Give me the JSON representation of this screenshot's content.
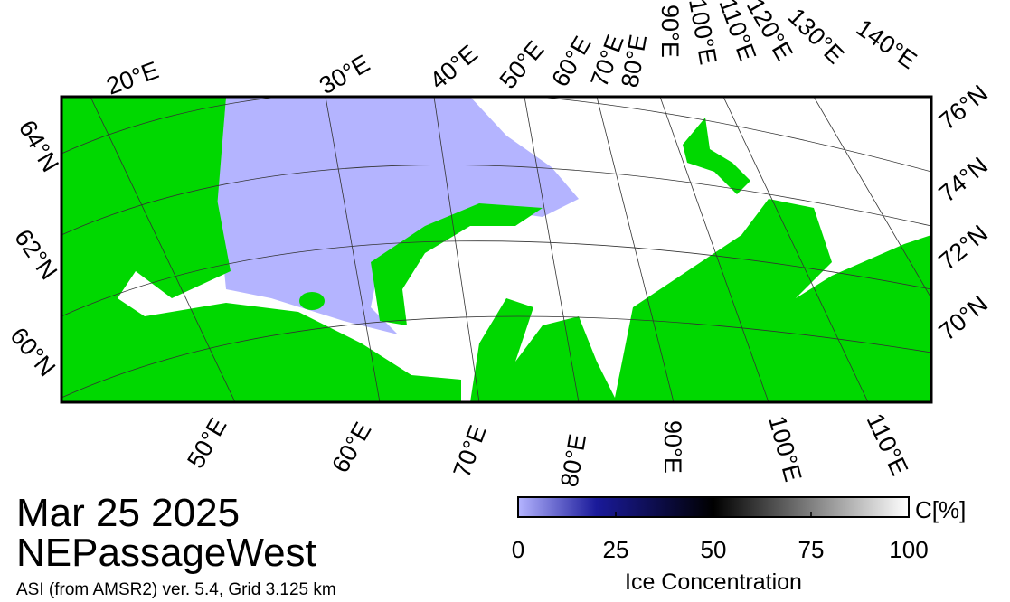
{
  "title": "Mar 25 2025",
  "region": "NEPassageWest",
  "source": "ASI (from AMSR2) ver. 5.4,  Grid 3.125 km",
  "top_labels": [
    "20°E",
    "30°E",
    "40°E",
    "50°E",
    "60°E",
    "70°E",
    "80°E",
    "90°E",
    "100°E",
    "110°E",
    "120°E",
    "130°E",
    "140°E"
  ],
  "right_labels": [
    "76°N",
    "74°N",
    "72°N",
    "70°N"
  ],
  "left_labels": [
    "64°N",
    "62°N",
    "60°N"
  ],
  "bottom_labels": [
    "50°E",
    "60°E",
    "70°E",
    "80°E",
    "90°E",
    "100°E",
    "110°E"
  ],
  "colorbar": {
    "label": "Ice Concentration",
    "unit": "C[%]",
    "lim": [
      0,
      100
    ],
    "ticks": [
      0,
      25,
      50,
      75,
      100
    ]
  }
}
